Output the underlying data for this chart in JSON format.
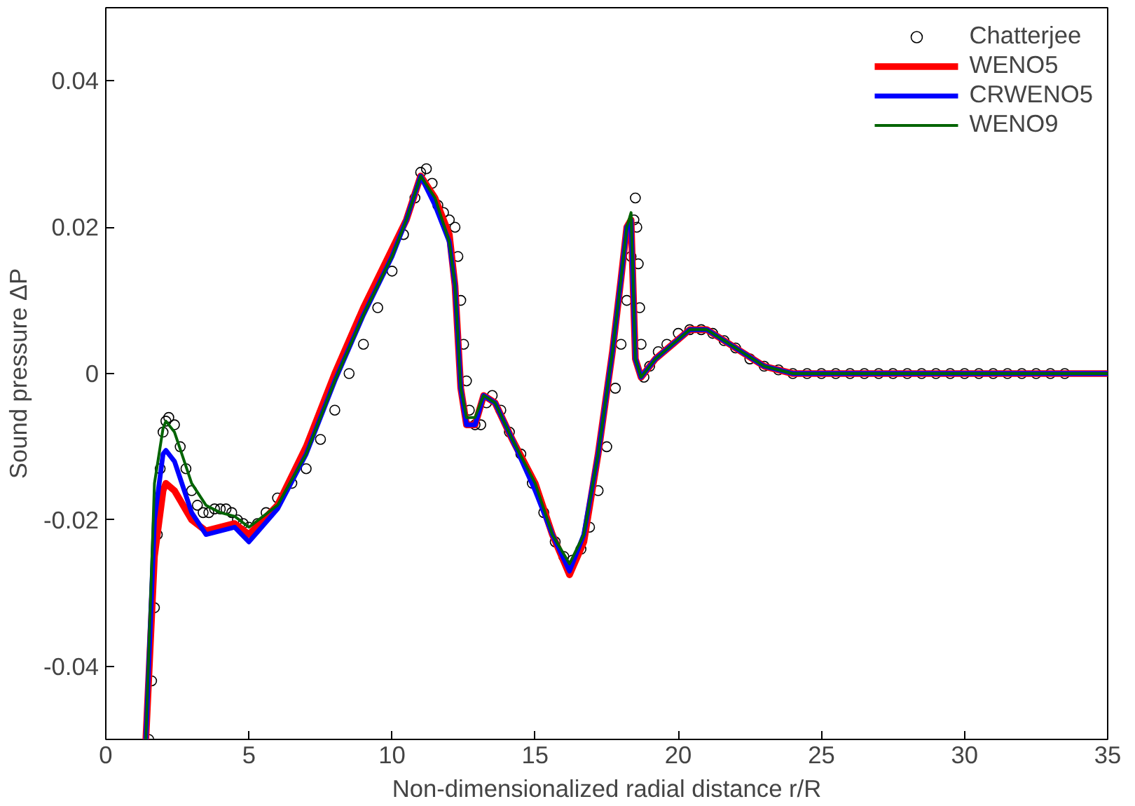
{
  "chart_data": {
    "type": "line",
    "xlabel": "Non-dimensionalized radial distance r/R",
    "ylabel": "Sound pressure ΔP",
    "xlim": [
      0,
      35
    ],
    "xticks": [
      0,
      5,
      10,
      15,
      20,
      25,
      30,
      35
    ],
    "ylim": [
      -0.05,
      0.05
    ],
    "yticks": [
      -0.04,
      -0.02,
      0,
      0.02,
      0.04
    ],
    "grid": false,
    "legend": "top right",
    "series": [
      {
        "name": "Chatterjee",
        "type": "scatter",
        "marker": "circle",
        "color": "#000000",
        "x": [
          1.5,
          1.6,
          1.7,
          1.8,
          1.9,
          2.0,
          2.1,
          2.2,
          2.4,
          2.6,
          2.8,
          3.0,
          3.2,
          3.4,
          3.6,
          3.8,
          4.0,
          4.2,
          4.4,
          4.6,
          4.8,
          5.0,
          5.3,
          5.6,
          6.0,
          6.5,
          7.0,
          7.5,
          8.0,
          8.5,
          9.0,
          9.5,
          10.0,
          10.4,
          10.8,
          11.0,
          11.2,
          11.4,
          11.6,
          11.8,
          12.0,
          12.2,
          12.3,
          12.4,
          12.5,
          12.6,
          12.7,
          12.9,
          13.1,
          13.3,
          13.5,
          13.8,
          14.1,
          14.5,
          14.9,
          15.3,
          15.7,
          16.0,
          16.3,
          16.6,
          16.9,
          17.2,
          17.5,
          17.8,
          18.0,
          18.2,
          18.35,
          18.45,
          18.5,
          18.55,
          18.6,
          18.65,
          18.7,
          18.8,
          19.0,
          19.3,
          19.6,
          20.0,
          20.4,
          20.8,
          21.2,
          21.6,
          22.0,
          22.5,
          23.0,
          23.5,
          24.0,
          24.5,
          25.0,
          25.5,
          26.0,
          26.5,
          27.0,
          27.5,
          28.0,
          28.5,
          29.0,
          29.5,
          30.0,
          30.5,
          31.0,
          31.5,
          32.0,
          32.5,
          33.0,
          33.5
        ],
        "values": [
          -0.05,
          -0.042,
          -0.032,
          -0.022,
          -0.013,
          -0.008,
          -0.0065,
          -0.006,
          -0.007,
          -0.01,
          -0.013,
          -0.016,
          -0.018,
          -0.019,
          -0.019,
          -0.0185,
          -0.0185,
          -0.0185,
          -0.019,
          -0.02,
          -0.0205,
          -0.021,
          -0.0205,
          -0.019,
          -0.017,
          -0.015,
          -0.013,
          -0.009,
          -0.005,
          0.0,
          0.004,
          0.009,
          0.014,
          0.019,
          0.024,
          0.0275,
          0.028,
          0.026,
          0.023,
          0.022,
          0.021,
          0.02,
          0.016,
          0.01,
          0.004,
          -0.001,
          -0.005,
          -0.007,
          -0.007,
          -0.004,
          -0.003,
          -0.005,
          -0.008,
          -0.011,
          -0.015,
          -0.019,
          -0.023,
          -0.025,
          -0.0255,
          -0.024,
          -0.021,
          -0.016,
          -0.01,
          -0.002,
          0.004,
          0.01,
          0.016,
          0.021,
          0.024,
          0.02,
          0.015,
          0.009,
          0.004,
          -0.0005,
          0.001,
          0.003,
          0.004,
          0.0055,
          0.006,
          0.006,
          0.0055,
          0.0045,
          0.0035,
          0.002,
          0.001,
          0.0005,
          0.0,
          0.0,
          0.0,
          0.0,
          0.0,
          0.0,
          0.0,
          0.0,
          0.0,
          0.0,
          0.0,
          0.0,
          0.0,
          0.0,
          0.0,
          0.0,
          0.0,
          0.0,
          0.0,
          0.0
        ]
      },
      {
        "name": "WENO5",
        "color": "#ff0000",
        "x": [
          1.4,
          1.7,
          2.0,
          2.1,
          2.4,
          3.0,
          3.5,
          4.0,
          4.5,
          5.0,
          6.0,
          7.0,
          8.0,
          9.0,
          10.0,
          10.5,
          11.0,
          11.5,
          12.0,
          12.2,
          12.4,
          12.6,
          12.9,
          13.2,
          13.6,
          14.2,
          15.0,
          15.6,
          16.2,
          16.7,
          17.2,
          17.7,
          18.0,
          18.2,
          18.35,
          18.5,
          18.7,
          19.2,
          19.8,
          20.4,
          21.0,
          21.6,
          22.2,
          23.0,
          24.0,
          26.0,
          30.0,
          35.0
        ],
        "values": [
          -0.05,
          -0.025,
          -0.016,
          -0.015,
          -0.016,
          -0.02,
          -0.0215,
          -0.021,
          -0.0205,
          -0.022,
          -0.018,
          -0.01,
          0.0,
          0.009,
          0.017,
          0.021,
          0.027,
          0.024,
          0.019,
          0.012,
          -0.002,
          -0.007,
          -0.007,
          -0.003,
          -0.004,
          -0.009,
          -0.015,
          -0.022,
          -0.0275,
          -0.023,
          -0.011,
          0.003,
          0.013,
          0.02,
          0.021,
          0.002,
          -0.0005,
          0.002,
          0.004,
          0.006,
          0.006,
          0.0045,
          0.003,
          0.001,
          0.0,
          0.0,
          0.0,
          0.0
        ]
      },
      {
        "name": "CRWENO5",
        "color": "#0000ff",
        "x": [
          1.4,
          1.7,
          2.0,
          2.1,
          2.4,
          3.0,
          3.5,
          4.0,
          4.5,
          5.0,
          6.0,
          7.0,
          8.0,
          9.0,
          10.0,
          10.5,
          11.0,
          11.5,
          12.0,
          12.2,
          12.4,
          12.6,
          12.9,
          13.2,
          13.6,
          14.2,
          15.0,
          15.6,
          16.2,
          16.7,
          17.2,
          17.7,
          18.0,
          18.2,
          18.35,
          18.5,
          18.7,
          19.2,
          19.8,
          20.4,
          21.0,
          21.6,
          22.2,
          23.0,
          24.0,
          26.0,
          30.0,
          35.0
        ],
        "values": [
          -0.05,
          -0.02,
          -0.011,
          -0.0105,
          -0.012,
          -0.019,
          -0.022,
          -0.0215,
          -0.021,
          -0.023,
          -0.0185,
          -0.011,
          -0.001,
          0.008,
          0.016,
          0.021,
          0.027,
          0.023,
          0.018,
          0.012,
          -0.002,
          -0.007,
          -0.007,
          -0.003,
          -0.004,
          -0.009,
          -0.016,
          -0.022,
          -0.027,
          -0.022,
          -0.011,
          0.003,
          0.013,
          0.02,
          0.021,
          0.002,
          -0.0005,
          0.002,
          0.004,
          0.006,
          0.006,
          0.0045,
          0.003,
          0.001,
          0.0,
          0.0,
          0.0,
          0.0
        ]
      },
      {
        "name": "WENO9",
        "color": "#006400",
        "x": [
          1.4,
          1.7,
          2.0,
          2.1,
          2.4,
          3.0,
          3.5,
          4.0,
          4.5,
          5.0,
          6.0,
          7.0,
          8.0,
          9.0,
          10.0,
          10.5,
          11.0,
          11.5,
          12.0,
          12.2,
          12.4,
          12.6,
          12.9,
          13.2,
          13.6,
          14.2,
          15.0,
          15.6,
          16.2,
          16.7,
          17.2,
          17.7,
          18.0,
          18.2,
          18.35,
          18.5,
          18.7,
          19.2,
          19.8,
          20.4,
          21.0,
          21.6,
          22.2,
          23.0,
          24.0,
          26.0,
          30.0,
          35.0
        ],
        "values": [
          -0.05,
          -0.015,
          -0.0075,
          -0.0065,
          -0.008,
          -0.015,
          -0.018,
          -0.019,
          -0.0195,
          -0.021,
          -0.018,
          -0.011,
          -0.001,
          0.008,
          0.016,
          0.021,
          0.027,
          0.024,
          0.018,
          0.012,
          -0.002,
          -0.006,
          -0.006,
          -0.003,
          -0.004,
          -0.009,
          -0.015,
          -0.022,
          -0.026,
          -0.022,
          -0.011,
          0.003,
          0.013,
          0.02,
          0.022,
          0.002,
          -0.0005,
          0.002,
          0.004,
          0.006,
          0.006,
          0.0045,
          0.003,
          0.001,
          0.0,
          0.0,
          0.0,
          0.0
        ]
      }
    ]
  }
}
